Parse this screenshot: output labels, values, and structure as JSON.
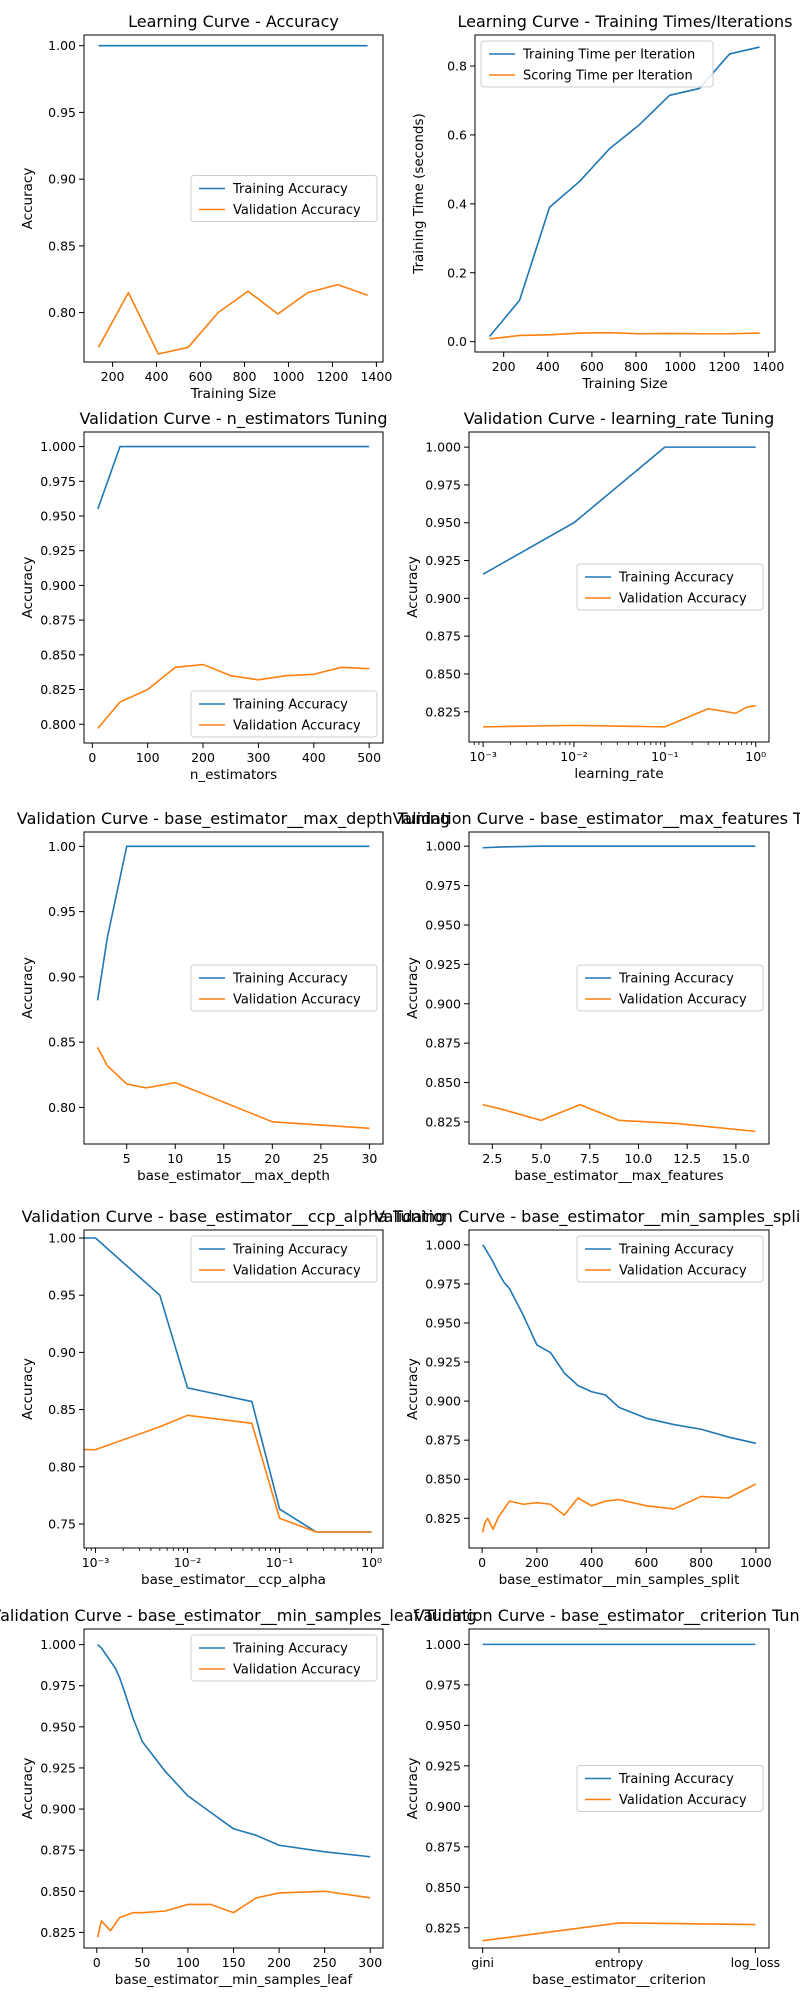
{
  "colors": {
    "series1": "#1f77b4",
    "series2": "#ff7f0e"
  },
  "chart_data": [
    {
      "type": "line",
      "title": "Learning Curve - Accuracy",
      "xlabel": "Training Size",
      "ylabel": "Accuracy",
      "xlim": [
        70,
        1430
      ],
      "ylim": [
        0.763,
        1.008
      ],
      "xticks": [
        200,
        400,
        600,
        800,
        1000,
        1200,
        1400
      ],
      "xtick_labels": [
        "200",
        "400",
        "600",
        "800",
        "1000",
        "1200",
        "1400"
      ],
      "yticks": [
        0.8,
        0.85,
        0.9,
        0.95,
        1.0
      ],
      "ytick_labels": [
        "0.80",
        "0.85",
        "0.90",
        "0.95",
        "1.00"
      ],
      "legend": "center-right",
      "series": [
        {
          "name": "Training Accuracy",
          "x": [
            136,
            272,
            408,
            544,
            680,
            816,
            952,
            1088,
            1224,
            1360
          ],
          "y": [
            1.0,
            1.0,
            1.0,
            1.0,
            1.0,
            1.0,
            1.0,
            1.0,
            1.0,
            1.0
          ]
        },
        {
          "name": "Validation Accuracy",
          "x": [
            136,
            272,
            408,
            544,
            680,
            816,
            952,
            1088,
            1224,
            1360
          ],
          "y": [
            0.774,
            0.815,
            0.769,
            0.774,
            0.8,
            0.816,
            0.799,
            0.815,
            0.821,
            0.813
          ]
        }
      ]
    },
    {
      "type": "line",
      "title": "Learning Curve - Training Times/Iterations",
      "xlabel": "Training Size",
      "ylabel": "Training Time (seconds)",
      "xlim": [
        70,
        1430
      ],
      "ylim": [
        -0.03,
        0.89
      ],
      "xticks": [
        200,
        400,
        600,
        800,
        1000,
        1200,
        1400
      ],
      "xtick_labels": [
        "200",
        "400",
        "600",
        "800",
        "1000",
        "1200",
        "1400"
      ],
      "yticks": [
        0.0,
        0.2,
        0.4,
        0.6,
        0.8
      ],
      "ytick_labels": [
        "0.0",
        "0.2",
        "0.4",
        "0.6",
        "0.8"
      ],
      "legend": "top-left",
      "series": [
        {
          "name": "Training Time per Iteration",
          "x": [
            136,
            272,
            408,
            544,
            680,
            816,
            952,
            1088,
            1224,
            1360
          ],
          "y": [
            0.015,
            0.12,
            0.39,
            0.465,
            0.56,
            0.63,
            0.715,
            0.735,
            0.835,
            0.855
          ]
        },
        {
          "name": "Scoring Time per Iteration",
          "x": [
            136,
            272,
            408,
            544,
            680,
            816,
            952,
            1088,
            1224,
            1360
          ],
          "y": [
            0.008,
            0.018,
            0.02,
            0.025,
            0.026,
            0.023,
            0.024,
            0.023,
            0.023,
            0.025
          ]
        }
      ]
    },
    {
      "type": "line",
      "title": "Validation Curve - n_estimators Tuning",
      "xlabel": "n_estimators",
      "ylabel": "Accuracy",
      "xlim": [
        -15,
        525
      ],
      "ylim": [
        0.7865,
        1.0105
      ],
      "xticks": [
        0,
        100,
        200,
        300,
        400,
        500
      ],
      "xtick_labels": [
        "0",
        "100",
        "200",
        "300",
        "400",
        "500"
      ],
      "yticks": [
        0.8,
        0.825,
        0.85,
        0.875,
        0.9,
        0.925,
        0.95,
        0.975,
        1.0
      ],
      "ytick_labels": [
        "0.800",
        "0.825",
        "0.850",
        "0.875",
        "0.900",
        "0.925",
        "0.950",
        "0.975",
        "1.000"
      ],
      "legend": "bottom-right",
      "series": [
        {
          "name": "Training Accuracy",
          "x": [
            10,
            50,
            100,
            150,
            200,
            250,
            300,
            350,
            400,
            450,
            500
          ],
          "y": [
            0.955,
            1.0,
            1.0,
            1.0,
            1.0,
            1.0,
            1.0,
            1.0,
            1.0,
            1.0,
            1.0
          ]
        },
        {
          "name": "Validation Accuracy",
          "x": [
            10,
            50,
            100,
            150,
            200,
            250,
            300,
            350,
            400,
            450,
            500
          ],
          "y": [
            0.797,
            0.816,
            0.825,
            0.841,
            0.843,
            0.835,
            0.832,
            0.835,
            0.836,
            0.841,
            0.84
          ]
        }
      ]
    },
    {
      "type": "line",
      "title": "Validation Curve - learning_rate Tuning",
      "xlabel": "learning_rate",
      "ylabel": "Accuracy",
      "xscale": "log",
      "xlim": [
        0.0007,
        1.4
      ],
      "ylim": [
        0.805,
        1.01
      ],
      "xticks": [
        0.001,
        0.01,
        0.1,
        1
      ],
      "xtick_labels": [
        "10⁻³",
        "10⁻²",
        "10⁻¹",
        "10⁰"
      ],
      "yticks": [
        0.825,
        0.85,
        0.875,
        0.9,
        0.925,
        0.95,
        0.975,
        1.0
      ],
      "ytick_labels": [
        "0.825",
        "0.850",
        "0.875",
        "0.900",
        "0.925",
        "0.950",
        "0.975",
        "1.000"
      ],
      "legend": "center-right",
      "series": [
        {
          "name": "Training Accuracy",
          "x": [
            0.001,
            0.01,
            0.1,
            0.3,
            0.6,
            0.8,
            1.0
          ],
          "y": [
            0.916,
            0.95,
            1.0,
            1.0,
            1.0,
            1.0,
            1.0
          ]
        },
        {
          "name": "Validation Accuracy",
          "x": [
            0.001,
            0.01,
            0.1,
            0.3,
            0.6,
            0.8,
            1.0
          ],
          "y": [
            0.815,
            0.816,
            0.815,
            0.827,
            0.824,
            0.828,
            0.829
          ]
        }
      ]
    },
    {
      "type": "line",
      "title": "Validation Curve - base_estimator__max_depth Tuning",
      "xlabel": "base_estimator__max_depth",
      "ylabel": "Accuracy",
      "xlim": [
        0.6,
        31.4
      ],
      "ylim": [
        0.772,
        1.011
      ],
      "xticks": [
        5,
        10,
        15,
        20,
        25,
        30
      ],
      "xtick_labels": [
        "5",
        "10",
        "15",
        "20",
        "25",
        "30"
      ],
      "yticks": [
        0.8,
        0.85,
        0.9,
        0.95,
        1.0
      ],
      "ytick_labels": [
        "0.80",
        "0.85",
        "0.90",
        "0.95",
        "1.00"
      ],
      "legend": "center-right",
      "series": [
        {
          "name": "Training Accuracy",
          "x": [
            2,
            3,
            5,
            7,
            10,
            20,
            30
          ],
          "y": [
            0.882,
            0.93,
            1.0,
            1.0,
            1.0,
            1.0,
            1.0
          ]
        },
        {
          "name": "Validation Accuracy",
          "x": [
            2,
            3,
            5,
            7,
            10,
            20,
            30
          ],
          "y": [
            0.846,
            0.832,
            0.818,
            0.815,
            0.819,
            0.789,
            0.784
          ]
        }
      ]
    },
    {
      "type": "line",
      "title": "Validation Curve - base_estimator__max_features Tuning",
      "xlabel": "base_estimator__max_features",
      "ylabel": "Accuracy",
      "xlim": [
        1.3,
        16.7
      ],
      "ylim": [
        0.811,
        1.009
      ],
      "xticks": [
        2.5,
        5.0,
        7.5,
        10.0,
        12.5,
        15.0
      ],
      "xtick_labels": [
        "2.5",
        "5.0",
        "7.5",
        "10.0",
        "12.5",
        "15.0"
      ],
      "yticks": [
        0.825,
        0.85,
        0.875,
        0.9,
        0.925,
        0.95,
        0.975,
        1.0
      ],
      "ytick_labels": [
        "0.825",
        "0.850",
        "0.875",
        "0.900",
        "0.925",
        "0.950",
        "0.975",
        "1.000"
      ],
      "legend": "center-right",
      "series": [
        {
          "name": "Training Accuracy",
          "x": [
            2,
            3,
            5,
            7,
            9,
            12,
            16
          ],
          "y": [
            0.999,
            0.9995,
            1.0,
            1.0,
            1.0,
            1.0,
            1.0
          ]
        },
        {
          "name": "Validation Accuracy",
          "x": [
            2,
            3,
            5,
            7,
            9,
            12,
            16
          ],
          "y": [
            0.836,
            0.833,
            0.826,
            0.836,
            0.826,
            0.824,
            0.819
          ]
        }
      ]
    },
    {
      "type": "line",
      "title": "Validation Curve - base_estimator__ccp_alpha Tuning",
      "xlabel": "base_estimator__ccp_alpha",
      "ylabel": "Accuracy",
      "xscale": "log",
      "xlim": [
        0.00075,
        1.33
      ],
      "ylim": [
        0.729,
        1.007
      ],
      "xticks": [
        0.001,
        0.01,
        0.1,
        1
      ],
      "xtick_labels": [
        "10⁻³",
        "10⁻²",
        "10⁻¹",
        "10⁰"
      ],
      "yticks": [
        0.75,
        0.8,
        0.85,
        0.9,
        0.95,
        1.0
      ],
      "ytick_labels": [
        "0.75",
        "0.80",
        "0.85",
        "0.90",
        "0.95",
        "1.00"
      ],
      "legend": "top-right",
      "series": [
        {
          "name": "Training Accuracy",
          "x": [
            0.0001,
            0.001,
            0.005,
            0.01,
            0.05,
            0.1,
            0.25,
            0.5,
            1.0
          ],
          "y": [
            1.0,
            1.0,
            0.95,
            0.869,
            0.857,
            0.763,
            0.743,
            0.743,
            0.743
          ]
        },
        {
          "name": "Validation Accuracy",
          "x": [
            0.0001,
            0.001,
            0.005,
            0.01,
            0.05,
            0.1,
            0.25,
            0.5,
            1.0
          ],
          "y": [
            0.815,
            0.815,
            0.835,
            0.845,
            0.838,
            0.755,
            0.743,
            0.743,
            0.743
          ]
        }
      ]
    },
    {
      "type": "line",
      "title": "Validation Curve - base_estimator__min_samples_split Tuning",
      "xlabel": "base_estimator__min_samples_split",
      "ylabel": "Accuracy",
      "xlim": [
        -48,
        1048
      ],
      "ylim": [
        0.806,
        1.0095
      ],
      "xticks": [
        0,
        200,
        400,
        600,
        800,
        1000
      ],
      "xtick_labels": [
        "0",
        "200",
        "400",
        "600",
        "800",
        "1000"
      ],
      "yticks": [
        0.825,
        0.85,
        0.875,
        0.9,
        0.925,
        0.95,
        0.975,
        1.0
      ],
      "ytick_labels": [
        "0.825",
        "0.850",
        "0.875",
        "0.900",
        "0.925",
        "0.950",
        "0.975",
        "1.000"
      ],
      "legend": "top-right",
      "series": [
        {
          "name": "Training Accuracy",
          "x": [
            2,
            10,
            20,
            40,
            60,
            80,
            100,
            150,
            200,
            250,
            300,
            350,
            400,
            450,
            500,
            600,
            700,
            800,
            900,
            1000
          ],
          "y": [
            1.0,
            0.998,
            0.995,
            0.989,
            0.982,
            0.976,
            0.972,
            0.955,
            0.936,
            0.931,
            0.918,
            0.91,
            0.906,
            0.904,
            0.896,
            0.889,
            0.885,
            0.882,
            0.877,
            0.873
          ]
        },
        {
          "name": "Validation Accuracy",
          "x": [
            2,
            10,
            20,
            40,
            60,
            80,
            100,
            150,
            200,
            250,
            300,
            350,
            400,
            450,
            500,
            600,
            700,
            800,
            900,
            1000
          ],
          "y": [
            0.816,
            0.822,
            0.825,
            0.818,
            0.826,
            0.831,
            0.836,
            0.834,
            0.835,
            0.834,
            0.827,
            0.838,
            0.833,
            0.836,
            0.837,
            0.833,
            0.831,
            0.839,
            0.838,
            0.847
          ]
        }
      ]
    },
    {
      "type": "line",
      "title": "Validation Curve - base_estimator__min_samples_leaf Tuning",
      "xlabel": "base_estimator__min_samples_leaf",
      "ylabel": "Accuracy",
      "xlim": [
        -14,
        314
      ],
      "ylim": [
        0.8155,
        1.0095
      ],
      "xticks": [
        0,
        50,
        100,
        150,
        200,
        250,
        300
      ],
      "xtick_labels": [
        "0",
        "50",
        "100",
        "150",
        "200",
        "250",
        "300"
      ],
      "yticks": [
        0.825,
        0.85,
        0.875,
        0.9,
        0.925,
        0.95,
        0.975,
        1.0
      ],
      "ytick_labels": [
        "0.825",
        "0.850",
        "0.875",
        "0.900",
        "0.925",
        "0.950",
        "0.975",
        "1.000"
      ],
      "legend": "top-right",
      "series": [
        {
          "name": "Training Accuracy",
          "x": [
            1,
            5,
            10,
            15,
            20,
            25,
            30,
            40,
            50,
            75,
            100,
            125,
            150,
            175,
            200,
            250,
            300
          ],
          "y": [
            1.0,
            0.998,
            0.994,
            0.99,
            0.986,
            0.98,
            0.972,
            0.955,
            0.941,
            0.923,
            0.908,
            0.898,
            0.888,
            0.884,
            0.878,
            0.874,
            0.871
          ]
        },
        {
          "name": "Validation Accuracy",
          "x": [
            1,
            5,
            10,
            15,
            20,
            25,
            30,
            40,
            50,
            75,
            100,
            125,
            150,
            175,
            200,
            250,
            300
          ],
          "y": [
            0.822,
            0.832,
            0.829,
            0.826,
            0.83,
            0.834,
            0.835,
            0.837,
            0.837,
            0.838,
            0.842,
            0.842,
            0.837,
            0.846,
            0.849,
            0.85,
            0.846
          ]
        }
      ]
    },
    {
      "type": "line",
      "title": "Validation Curve - base_estimator__criterion Tuning",
      "xlabel": "base_estimator__criterion",
      "ylabel": "Accuracy",
      "xlim": [
        -0.1,
        2.1
      ],
      "ylim": [
        0.8125,
        1.0095
      ],
      "categories": [
        "gini",
        "entropy",
        "log_loss"
      ],
      "xticks": [
        0,
        1,
        2
      ],
      "xtick_labels": [
        "gini",
        "entropy",
        "log_loss"
      ],
      "yticks": [
        0.825,
        0.85,
        0.875,
        0.9,
        0.925,
        0.95,
        0.975,
        1.0
      ],
      "ytick_labels": [
        "0.825",
        "0.850",
        "0.875",
        "0.900",
        "0.925",
        "0.950",
        "0.975",
        "1.000"
      ],
      "legend": "center-right",
      "series": [
        {
          "name": "Training Accuracy",
          "x": [
            0,
            1,
            2
          ],
          "y": [
            1.0,
            1.0,
            1.0
          ]
        },
        {
          "name": "Validation Accuracy",
          "x": [
            0,
            1,
            2
          ],
          "y": [
            0.817,
            0.828,
            0.827
          ]
        }
      ]
    }
  ]
}
